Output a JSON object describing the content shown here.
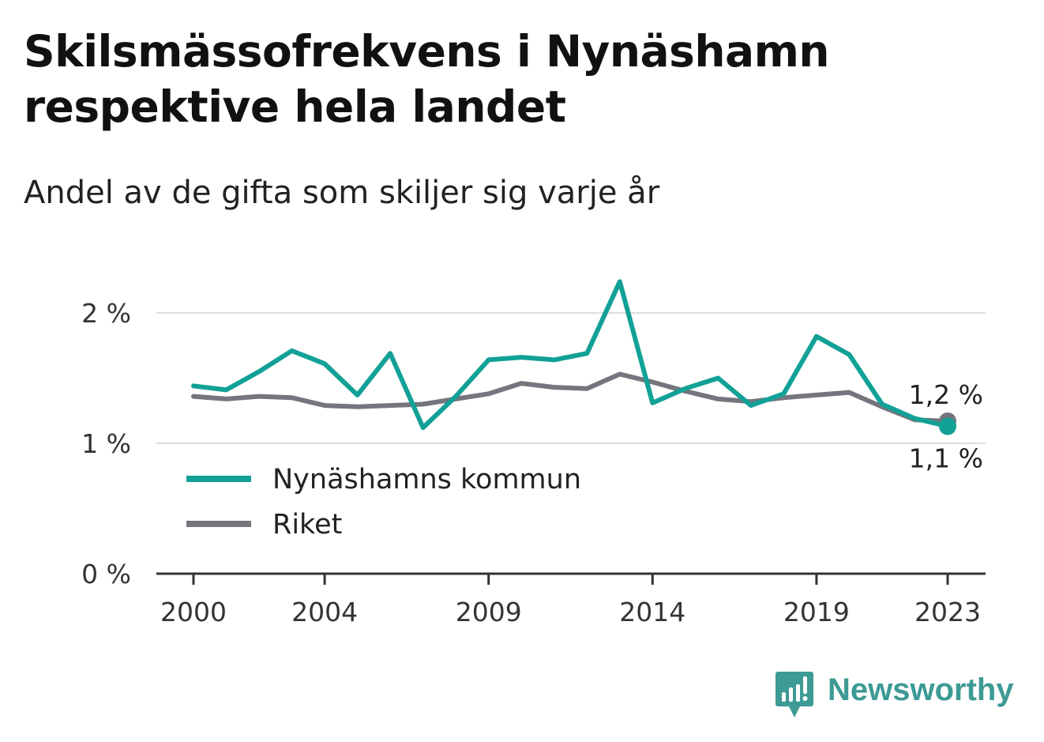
{
  "title_lines": [
    "Skilsmässofrekvens i Nynäshamn",
    "respektive hela landet"
  ],
  "subtitle": "Andel av de gifta som skiljer sig varje år",
  "brand": {
    "name": "Newsworthy",
    "color": "#3d9a94"
  },
  "chart_data": {
    "type": "line",
    "x": [
      2000,
      2001,
      2002,
      2003,
      2004,
      2005,
      2006,
      2007,
      2008,
      2009,
      2010,
      2011,
      2012,
      2013,
      2014,
      2015,
      2016,
      2017,
      2018,
      2019,
      2020,
      2021,
      2022,
      2023
    ],
    "xticks": [
      2000,
      2004,
      2009,
      2014,
      2019,
      2023
    ],
    "xtick_labels": [
      "2000",
      "2004",
      "2009",
      "2014",
      "2019",
      "2023"
    ],
    "yticks": [
      0,
      1,
      2
    ],
    "ytick_labels": [
      "0 %",
      "1 %",
      "2 %"
    ],
    "ylim": [
      0,
      2.3
    ],
    "grid": true,
    "legend_position": "bottom-left",
    "series": [
      {
        "name": "Nynäshamns kommun",
        "color": "#12a196",
        "values": [
          1.44,
          1.41,
          1.55,
          1.71,
          1.61,
          1.37,
          1.69,
          1.12,
          1.36,
          1.64,
          1.66,
          1.64,
          1.69,
          2.24,
          1.31,
          1.42,
          1.5,
          1.29,
          1.38,
          1.82,
          1.68,
          1.3,
          1.19,
          1.13
        ],
        "end_label": "1,1 %"
      },
      {
        "name": "Riket",
        "color": "#75757d",
        "values": [
          1.36,
          1.34,
          1.36,
          1.35,
          1.29,
          1.28,
          1.29,
          1.3,
          1.34,
          1.38,
          1.46,
          1.43,
          1.42,
          1.53,
          1.47,
          1.4,
          1.34,
          1.32,
          1.35,
          1.37,
          1.39,
          1.28,
          1.18,
          1.17
        ],
        "end_label": "1,2 %"
      }
    ]
  }
}
